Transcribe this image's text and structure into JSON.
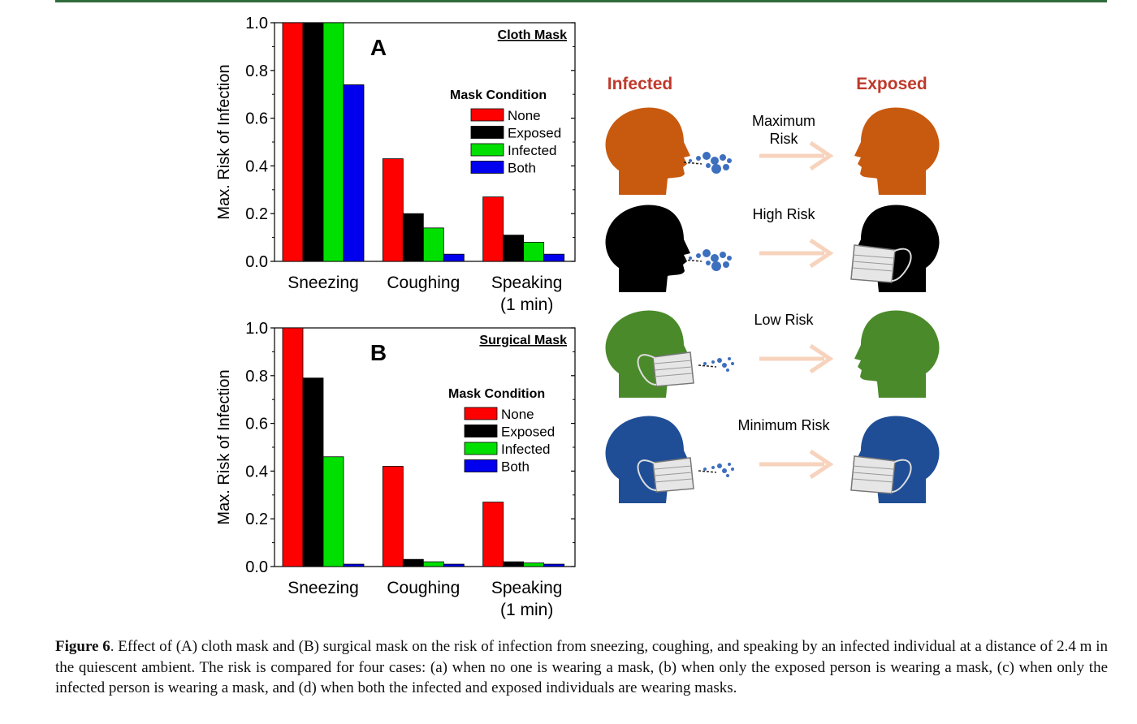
{
  "colors": {
    "none": "#ff0000",
    "exposed": "#000000",
    "infected": "#00e000",
    "both": "#0000ee",
    "infected_label": "#c0392b",
    "exposed_label": "#c0392b",
    "head_orange": "#c85a10",
    "head_black": "#000000",
    "head_green": "#4a8a2a",
    "head_blue": "#1f4e96",
    "droplet": "#3d6fbf",
    "arrow": "#f7d3bd",
    "mask": "#e6e6e6"
  },
  "chart_data": [
    {
      "type": "bar",
      "panel": "A",
      "title": "Cloth Mask",
      "xlabel": "",
      "ylabel": "Max. Risk of Infection",
      "ylim": [
        0,
        1.0
      ],
      "yticks": [
        "0.0",
        "0.2",
        "0.4",
        "0.6",
        "0.8",
        "1.0"
      ],
      "categories": [
        "Sneezing",
        "Coughing",
        "Speaking\n(1 min)"
      ],
      "legend_title": "Mask Condition",
      "legend_position": "upper-right",
      "series": [
        {
          "name": "None",
          "color_key": "none",
          "values": [
            1.0,
            0.43,
            0.27
          ]
        },
        {
          "name": "Exposed",
          "color_key": "exposed",
          "values": [
            1.0,
            0.2,
            0.11
          ]
        },
        {
          "name": "Infected",
          "color_key": "infected",
          "values": [
            1.0,
            0.14,
            0.08
          ]
        },
        {
          "name": "Both",
          "color_key": "both",
          "values": [
            0.74,
            0.03,
            0.03
          ]
        }
      ]
    },
    {
      "type": "bar",
      "panel": "B",
      "title": "Surgical Mask",
      "xlabel": "",
      "ylabel": "Max. Risk of Infection",
      "ylim": [
        0,
        1.0
      ],
      "yticks": [
        "0.0",
        "0.2",
        "0.4",
        "0.6",
        "0.8",
        "1.0"
      ],
      "categories": [
        "Sneezing",
        "Coughing",
        "Speaking\n(1 min)"
      ],
      "legend_title": "Mask Condition",
      "legend_position": "upper-right",
      "series": [
        {
          "name": "None",
          "color_key": "none",
          "values": [
            1.0,
            0.42,
            0.27
          ]
        },
        {
          "name": "Exposed",
          "color_key": "exposed",
          "values": [
            0.79,
            0.03,
            0.02
          ]
        },
        {
          "name": "Infected",
          "color_key": "infected",
          "values": [
            0.46,
            0.02,
            0.015
          ]
        },
        {
          "name": "Both",
          "color_key": "both",
          "values": [
            0.01,
            0.01,
            0.01
          ]
        }
      ]
    }
  ],
  "illustration": {
    "infected_header": "Infected",
    "exposed_header": "Exposed",
    "rows": [
      {
        "risk": "Maximum\nRisk",
        "head_color": "head_orange",
        "infected_mask": false,
        "exposed_mask": false
      },
      {
        "risk": "High Risk",
        "head_color": "head_black",
        "infected_mask": false,
        "exposed_mask": true
      },
      {
        "risk": "Low Risk",
        "head_color": "head_green",
        "infected_mask": true,
        "exposed_mask": false
      },
      {
        "risk": "Minimum Risk",
        "head_color": "head_blue",
        "infected_mask": true,
        "exposed_mask": true
      }
    ]
  },
  "caption": {
    "label": "Figure 6",
    "text": ". Effect of (A) cloth mask and (B) surgical mask on the risk of infection from sneezing, coughing, and speaking by an infected individual at a distance of 2.4 m in the quiescent ambient. The risk is compared for four cases: (a) when no one is wearing a mask, (b) when only the exposed person is wearing a mask, (c) when only the infected person is wearing a mask, and (d) when both the infected and exposed individuals are wearing masks."
  }
}
